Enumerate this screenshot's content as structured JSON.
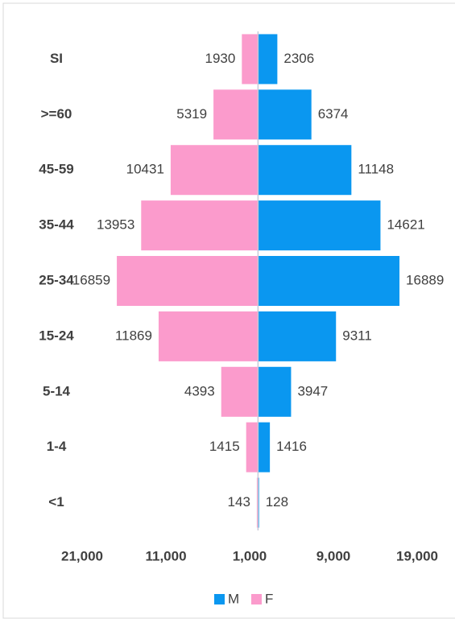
{
  "chart_data": {
    "type": "pyramid",
    "categories": [
      "SI",
      ">=60",
      "45-59",
      "35-44",
      "25-34",
      "15-24",
      "5-14",
      "1-4",
      "<1"
    ],
    "series": [
      {
        "name": "M",
        "color": "#0a97f0",
        "side": "right",
        "values": [
          2306,
          6374,
          11148,
          14621,
          16889,
          9311,
          3947,
          1416,
          128
        ]
      },
      {
        "name": "F",
        "color": "#fb9bcc",
        "side": "left",
        "values": [
          1930,
          5319,
          10431,
          13953,
          16859,
          11869,
          4393,
          1415,
          143
        ]
      }
    ],
    "xlim": [
      -21000,
      19000
    ],
    "xticks": [
      {
        "value": -21000,
        "label": "21,000"
      },
      {
        "value": -11000,
        "label": "11,000"
      },
      {
        "value": -1000,
        "label": "1,000"
      },
      {
        "value": 9000,
        "label": "9,000"
      },
      {
        "value": 19000,
        "label": "19,000"
      }
    ],
    "legend": "bottom"
  }
}
